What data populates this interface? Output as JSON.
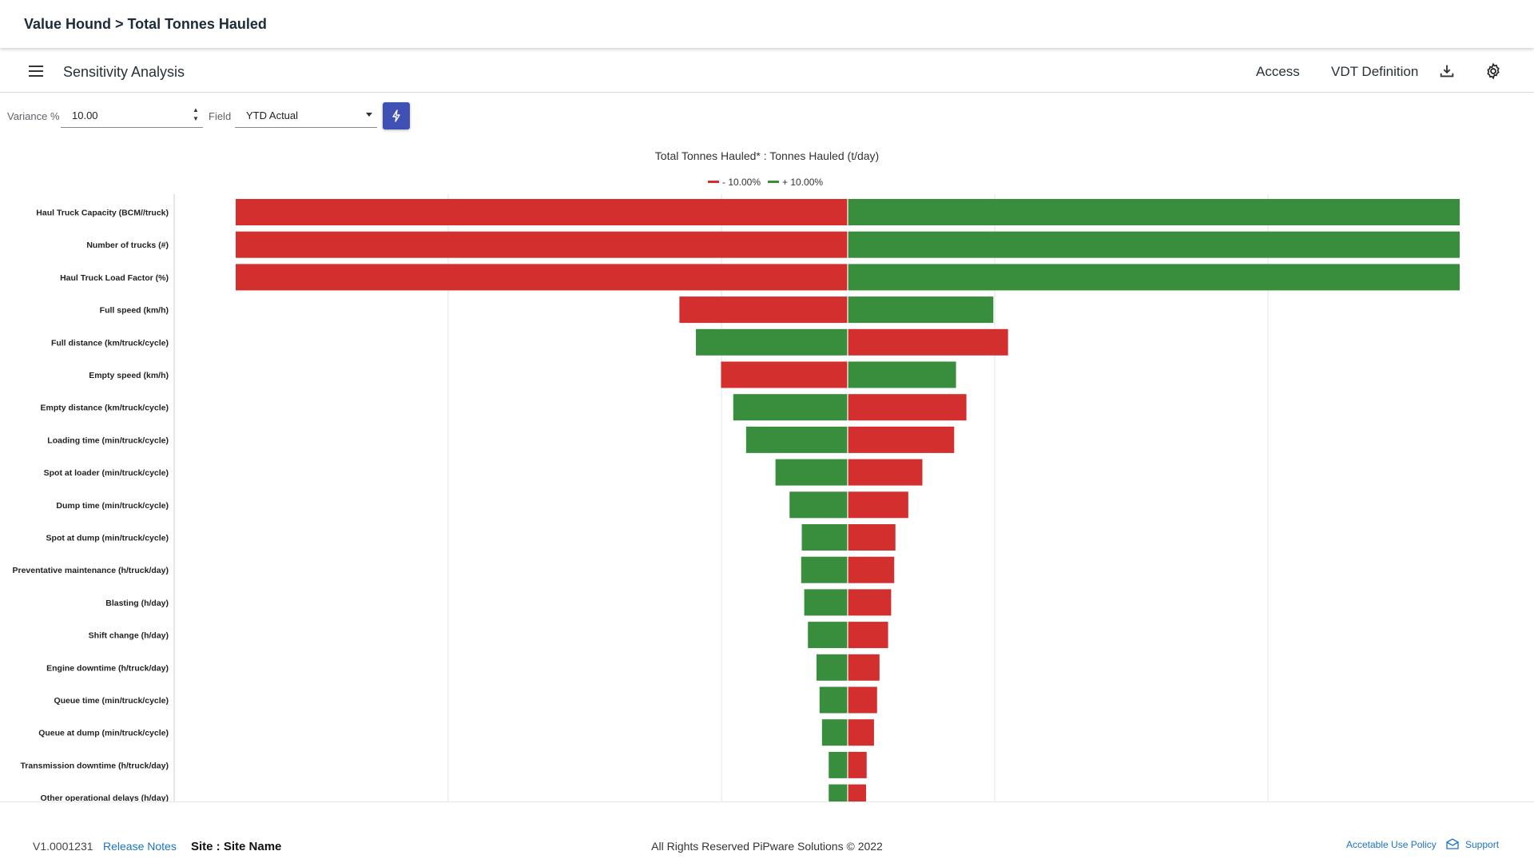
{
  "header": {
    "breadcrumb": "Value Hound > Total Tonnes Hauled"
  },
  "toolbar": {
    "menu_icon": "hamburger-menu-icon",
    "title": "Sensitivity Analysis",
    "access_label": "Access",
    "vdt_label": "VDT Definition",
    "download_icon": "download-icon",
    "settings_icon": "gear-icon"
  },
  "controls": {
    "variance_label": "Variance %",
    "variance_value": "10.00",
    "field_label": "Field",
    "field_value": "YTD Actual",
    "run_icon": "lightning-bolt-icon",
    "accent_color": "#3f51b5"
  },
  "chart_data": {
    "type": "bar",
    "orientation": "horizontal-tornado",
    "title": "Total Tonnes Hauled* : Tonnes Hauled (t/day)",
    "legend": [
      {
        "name": "- 10.00%",
        "color": "#d32f2f"
      },
      {
        "name": "+ 10.00%",
        "color": "#388e3c"
      }
    ],
    "legend_position": "top-center",
    "grid": true,
    "categories": [
      "Haul Truck Capacity (BCM//truck)",
      "Number of trucks (#)",
      "Haul Truck Load Factor (%)",
      "Full speed (km/h)",
      "Full distance (km/truck/cycle)",
      "Empty speed (km/h)",
      "Empty distance (km/truck/cycle)",
      "Loading time (min/truck/cycle)",
      "Spot at loader (min/truck/cycle)",
      "Dump time (min/truck/cycle)",
      "Spot at dump (min/truck/cycle)",
      "Preventative maintenance (h/truck/day)",
      "Blasting (h/day)",
      "Shift change (h/day)",
      "Engine downtime (h/truck/day)",
      "Queue time (min/truck/cycle)",
      "Queue at dump (min/truck/cycle)",
      "Transmission downtime (h/truck/day)",
      "Other operational delays (h/day)"
    ],
    "baseline": 0,
    "xlim": [
      -1.0,
      1.0
    ],
    "series": [
      {
        "name": "- 10.00%",
        "color": "#d32f2f",
        "values": [
          -1.0,
          -1.0,
          -1.0,
          -0.275,
          0.262,
          -0.207,
          0.194,
          0.174,
          0.122,
          0.099,
          0.078,
          0.076,
          0.071,
          0.066,
          0.052,
          0.048,
          0.043,
          0.031,
          0.03
        ]
      },
      {
        "name": "+ 10.00%",
        "color": "#388e3c",
        "values": [
          1.0,
          1.0,
          1.0,
          0.238,
          -0.248,
          0.177,
          -0.187,
          -0.166,
          -0.118,
          -0.095,
          -0.075,
          -0.076,
          -0.071,
          -0.065,
          -0.051,
          -0.046,
          -0.042,
          -0.031,
          -0.031
        ]
      }
    ]
  },
  "footer": {
    "version": "V1.0001231",
    "release_notes": "Release Notes",
    "site": "Site : Site Name",
    "copyright": "All Rights Reserved PiPware Solutions © 2022",
    "policy": "Accetable Use Policy",
    "support_icon": "mail-icon",
    "support": "Support"
  }
}
